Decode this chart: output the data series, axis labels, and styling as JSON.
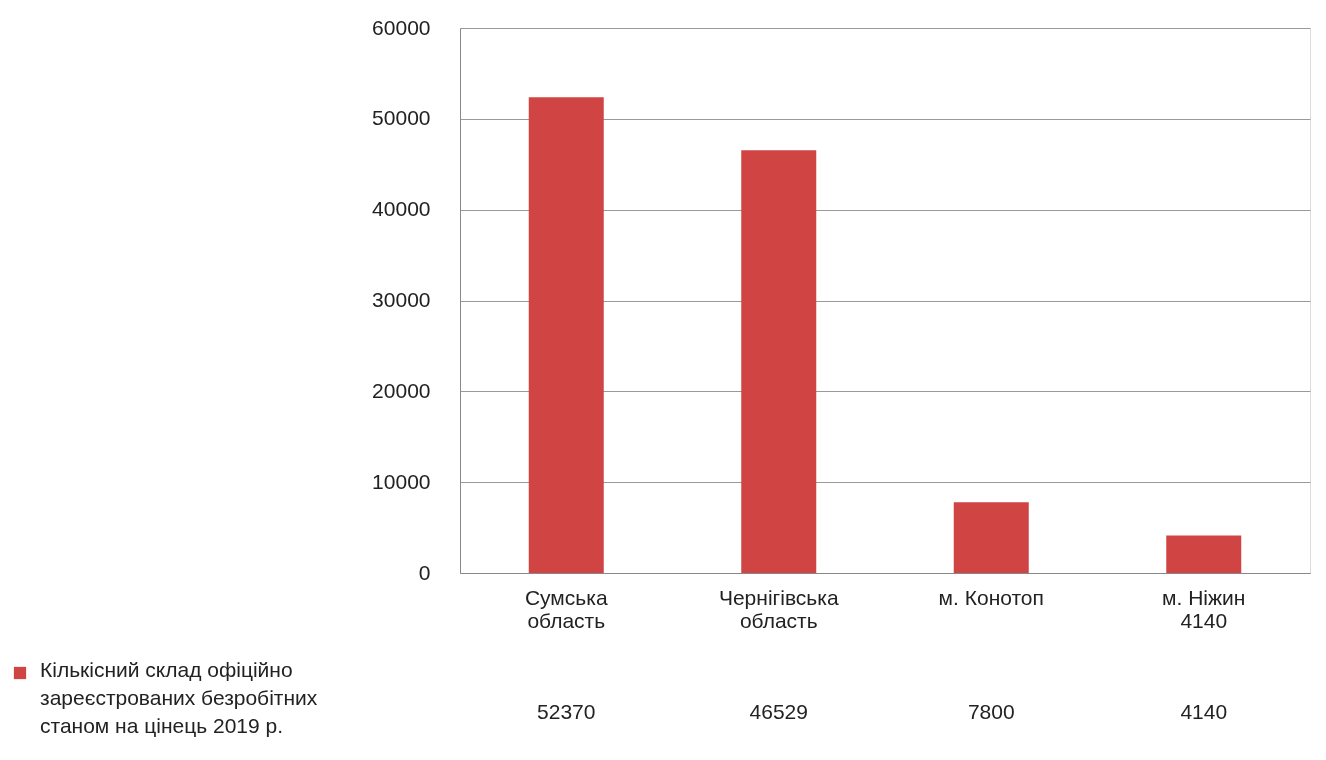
{
  "chart_data": {
    "type": "bar",
    "categories": [
      "Сумська область",
      "Чернігівська область",
      "м. Конотоп",
      "м. Ніжин 4140"
    ],
    "series": [
      {
        "name": "Кількісний склад офіційно зареєстрованих безробітних станом на цінець 2019 р.",
        "color": "#d04444",
        "values": [
          52370,
          46529,
          7800,
          4140
        ]
      }
    ],
    "ylim": [
      0,
      60000
    ],
    "yticks": [
      0,
      10000,
      20000,
      30000,
      40000,
      50000,
      60000
    ],
    "grid": "y",
    "data_labels": true,
    "legend": "bottom left"
  }
}
